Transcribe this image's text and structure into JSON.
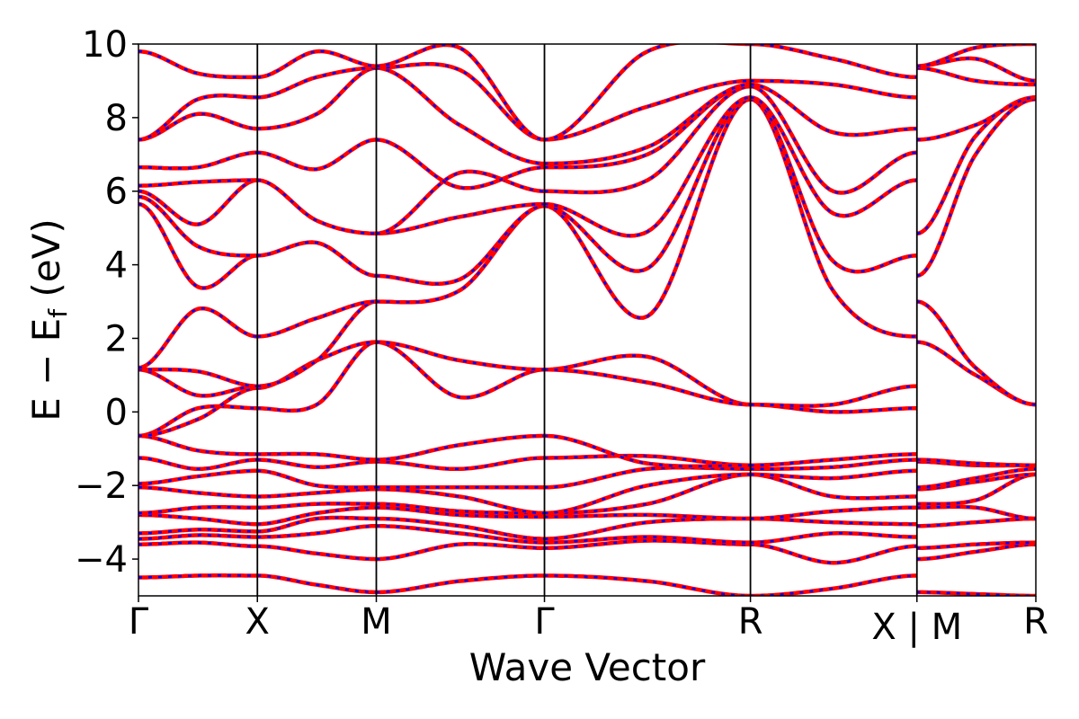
{
  "chart_data": {
    "type": "line",
    "title": "",
    "xlabel": "Wave Vector",
    "ylabel": {
      "main": "E − E",
      "sub": "f",
      "unit": " (eV)"
    },
    "ylim": [
      -5,
      10
    ],
    "yticks": [
      -4,
      -2,
      0,
      2,
      4,
      6,
      8,
      10
    ],
    "ytick_labels": [
      "−4",
      "−2",
      "0",
      "2",
      "4",
      "6",
      "8",
      "10"
    ],
    "xlim": [
      0,
      3.773
    ],
    "kpath": [
      {
        "label": "Γ",
        "k": 0.0
      },
      {
        "label": "X",
        "k": 0.5
      },
      {
        "label": "M",
        "k": 1.0
      },
      {
        "label": "Γ",
        "k": 1.707
      },
      {
        "label": "R",
        "k": 2.573
      },
      {
        "label": "X",
        "k": 3.273
      },
      {
        "label": "M",
        "k": 3.273
      },
      {
        "label": "R",
        "k": 3.773
      }
    ],
    "kpath_break_label": "X | M",
    "line_colors": {
      "band_solid": "#ff0000",
      "band_dashed": "#0000ff",
      "frame": "#000000"
    },
    "segments": [
      {
        "name": "Γ-X",
        "k": [
          0.0,
          0.5
        ],
        "knots": [
          0,
          0.25,
          0.5
        ],
        "bands": [
          [
            -4.5,
            -4.45,
            -4.45
          ],
          [
            -3.6,
            -3.55,
            -3.65
          ],
          [
            -3.45,
            -3.35,
            -3.4
          ],
          [
            -3.3,
            -3.2,
            -3.25
          ],
          [
            -2.8,
            -2.9,
            -3.05
          ],
          [
            -2.75,
            -2.6,
            -2.6
          ],
          [
            -2.05,
            -2.2,
            -2.3
          ],
          [
            -1.95,
            -1.75,
            -1.6
          ],
          [
            -1.25,
            -1.55,
            -1.3
          ],
          [
            -0.65,
            -1.05,
            -1.15
          ],
          [
            -0.65,
            0.1,
            0.1
          ],
          [
            -0.65,
            -0.2,
            0.65
          ],
          [
            1.15,
            0.45,
            0.7
          ],
          [
            1.15,
            1.1,
            0.7
          ],
          [
            1.2,
            2.8,
            2.05
          ],
          [
            5.65,
            3.4,
            4.25
          ],
          [
            5.85,
            4.5,
            4.25
          ],
          [
            6.0,
            5.1,
            6.3
          ],
          [
            6.15,
            6.25,
            6.3
          ],
          [
            6.65,
            6.65,
            7.05
          ],
          [
            7.4,
            8.1,
            7.7
          ],
          [
            7.4,
            8.5,
            8.55
          ],
          [
            9.8,
            9.2,
            9.1
          ]
        ]
      },
      {
        "name": "X-M",
        "k": [
          0.5,
          1.0
        ],
        "knots": [
          0.5,
          0.75,
          1.0
        ],
        "bands": [
          [
            -4.45,
            -4.7,
            -4.9
          ],
          [
            -3.65,
            -3.85,
            -4.0
          ],
          [
            -3.4,
            -3.3,
            -3.1
          ],
          [
            -3.25,
            -2.9,
            -2.9
          ],
          [
            -3.05,
            -2.75,
            -2.6
          ],
          [
            -2.6,
            -2.5,
            -2.5
          ],
          [
            -2.3,
            -2.2,
            -2.1
          ],
          [
            -1.6,
            -2.0,
            -2.05
          ],
          [
            -1.3,
            -1.5,
            -1.35
          ],
          [
            -1.15,
            -1.15,
            -1.3
          ],
          [
            0.1,
            0.2,
            1.9
          ],
          [
            0.65,
            1.4,
            1.9
          ],
          [
            0.7,
            1.4,
            3.0
          ],
          [
            2.05,
            2.55,
            3.0
          ],
          [
            4.25,
            4.6,
            3.7
          ],
          [
            6.3,
            5.2,
            4.85
          ],
          [
            7.05,
            6.6,
            7.4
          ],
          [
            7.7,
            8.1,
            9.35
          ],
          [
            8.55,
            9.1,
            9.35
          ],
          [
            9.1,
            9.8,
            9.4
          ]
        ]
      },
      {
        "name": "M-Γ",
        "k": [
          1.0,
          1.707
        ],
        "knots": [
          1.0,
          1.35,
          1.707
        ],
        "bands": [
          [
            -4.9,
            -4.6,
            -4.45
          ],
          [
            -4.0,
            -3.6,
            -3.7
          ],
          [
            -3.1,
            -3.3,
            -3.55
          ],
          [
            -2.9,
            -3.1,
            -3.45
          ],
          [
            -2.6,
            -2.8,
            -2.85
          ],
          [
            -2.5,
            -2.7,
            -2.75
          ],
          [
            -2.1,
            -2.3,
            -2.75
          ],
          [
            -2.05,
            -2.05,
            -2.05
          ],
          [
            -1.35,
            -1.55,
            -1.25
          ],
          [
            -1.3,
            -0.9,
            -0.65
          ],
          [
            1.9,
            0.4,
            1.15
          ],
          [
            1.9,
            1.4,
            1.15
          ],
          [
            3.0,
            3.3,
            5.6
          ],
          [
            3.7,
            3.6,
            5.6
          ],
          [
            4.85,
            5.3,
            5.65
          ],
          [
            4.85,
            6.5,
            6.0
          ],
          [
            7.4,
            6.1,
            6.65
          ],
          [
            9.35,
            7.8,
            6.75
          ],
          [
            9.35,
            9.3,
            7.4
          ],
          [
            9.4,
            9.9,
            7.4
          ]
        ]
      },
      {
        "name": "Γ-R",
        "k": [
          1.707,
          2.573
        ],
        "knots": [
          1.707,
          2.14,
          2.573
        ],
        "bands": [
          [
            -4.45,
            -4.6,
            -5.0
          ],
          [
            -3.7,
            -3.5,
            -3.6
          ],
          [
            -3.55,
            -3.4,
            -3.55
          ],
          [
            -3.45,
            -3.0,
            -2.9
          ],
          [
            -2.85,
            -2.8,
            -2.9
          ],
          [
            -2.75,
            -2.5,
            -1.7
          ],
          [
            -2.75,
            -2.0,
            -1.7
          ],
          [
            -2.05,
            -1.55,
            -1.55
          ],
          [
            -1.25,
            -1.2,
            -1.45
          ],
          [
            -0.65,
            -1.4,
            -1.45
          ],
          [
            1.15,
            1.5,
            0.2
          ],
          [
            1.15,
            0.8,
            0.2
          ],
          [
            5.6,
            2.6,
            8.5
          ],
          [
            5.6,
            3.9,
            8.55
          ],
          [
            5.65,
            4.9,
            8.55
          ],
          [
            6.0,
            6.3,
            8.85
          ],
          [
            6.65,
            7.0,
            8.9
          ],
          [
            6.75,
            7.2,
            8.9
          ],
          [
            7.4,
            8.3,
            9.0
          ],
          [
            7.4,
            9.8,
            10.0
          ]
        ]
      },
      {
        "name": "R-X",
        "k": [
          2.573,
          3.273
        ],
        "knots": [
          2.573,
          2.92,
          3.273
        ],
        "bands": [
          [
            -5.0,
            -4.8,
            -4.45
          ],
          [
            -3.6,
            -4.1,
            -3.65
          ],
          [
            -3.55,
            -3.3,
            -3.4
          ],
          [
            -2.9,
            -3.0,
            -3.05
          ],
          [
            -2.9,
            -2.7,
            -2.6
          ],
          [
            -1.7,
            -2.3,
            -2.3
          ],
          [
            -1.7,
            -1.8,
            -1.6
          ],
          [
            -1.55,
            -1.5,
            -1.3
          ],
          [
            -1.45,
            -1.3,
            -1.15
          ],
          [
            0.2,
            0.0,
            0.1
          ],
          [
            0.2,
            0.2,
            0.7
          ],
          [
            8.5,
            3.3,
            2.05
          ],
          [
            8.55,
            4.1,
            4.25
          ],
          [
            8.55,
            5.4,
            6.3
          ],
          [
            8.85,
            6.0,
            7.05
          ],
          [
            8.9,
            7.6,
            7.7
          ],
          [
            9.0,
            8.9,
            8.55
          ],
          [
            10.0,
            9.6,
            9.1
          ]
        ]
      },
      {
        "name": "M-R",
        "k": [
          3.273,
          3.773
        ],
        "knots": [
          3.273,
          3.52,
          3.773
        ],
        "bands": [
          [
            -4.9,
            -4.95,
            -5.0
          ],
          [
            -4.0,
            -3.8,
            -3.6
          ],
          [
            -3.7,
            -3.6,
            -3.55
          ],
          [
            -3.1,
            -3.0,
            -2.9
          ],
          [
            -2.6,
            -2.6,
            -2.9
          ],
          [
            -2.5,
            -2.4,
            -1.7
          ],
          [
            -2.1,
            -1.9,
            -1.7
          ],
          [
            -2.05,
            -1.8,
            -1.55
          ],
          [
            -1.35,
            -1.45,
            -1.45
          ],
          [
            -1.3,
            -1.4,
            -1.45
          ],
          [
            1.9,
            1.0,
            0.2
          ],
          [
            3.0,
            1.2,
            0.2
          ],
          [
            3.7,
            7.0,
            8.5
          ],
          [
            4.85,
            7.5,
            8.55
          ],
          [
            7.4,
            7.8,
            8.55
          ],
          [
            9.35,
            9.0,
            8.9
          ],
          [
            9.4,
            9.6,
            9.0
          ],
          [
            9.4,
            9.9,
            10.0
          ]
        ]
      }
    ]
  }
}
